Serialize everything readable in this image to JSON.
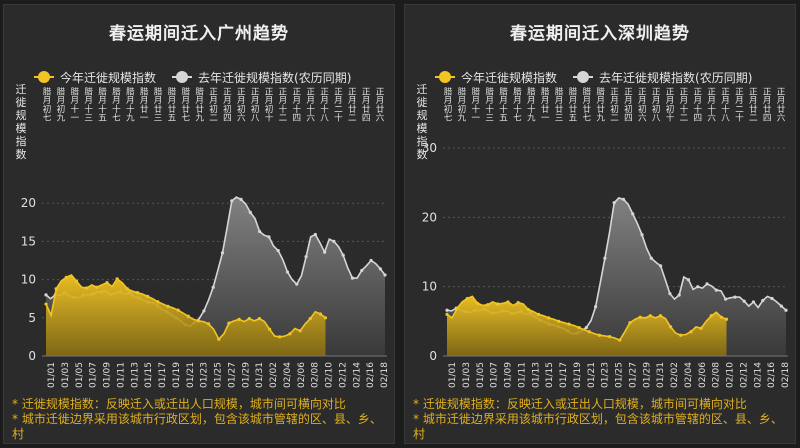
{
  "panels": [
    {
      "title": "春运期间迁入广州趋势",
      "legend": [
        "今年迁徙规模指数",
        "去年迁徙规模指数(农历同期)"
      ],
      "ylabel": "迁徙规模指数",
      "notes": [
        "* 迁徙规模指数：反映迁入或迁出人口规模，城市间可横向对比",
        "* 城市迁徙边界采用该城市行政区划，包含该城市管辖的区、县、乡、村"
      ]
    },
    {
      "title": "春运期间迁入深圳趋势",
      "legend": [
        "今年迁徙规模指数",
        "去年迁徙规模指数(农历同期)"
      ],
      "ylabel": "迁徙规模指数",
      "notes": [
        "* 迁徙规模指数：反映迁入或迁出人口规模，城市间可横向对比",
        "* 城市迁徙边界采用该城市行政区划，包含该城市管辖的区、县、乡、村"
      ]
    }
  ],
  "colors": {
    "this_year": "#f2c522",
    "last_year": "#d6d6d6",
    "grid": "#555555",
    "axis_text": "#e0e0e0",
    "note_text": "#e0b01e"
  },
  "chart_data": [
    {
      "type": "area",
      "title": "春运期间迁入广州趋势",
      "ylabel": "迁徙规模指数",
      "ylim": [
        0,
        25
      ],
      "yticks": [
        0,
        5,
        10,
        15,
        20
      ],
      "grid": true,
      "legend_position": "top-left",
      "x_tick_labels": [
        "01/01",
        "01/03",
        "01/05",
        "01/07",
        "01/09",
        "01/11",
        "01/13",
        "01/15",
        "01/17",
        "01/19",
        "01/21",
        "01/23",
        "01/25",
        "01/27",
        "01/29",
        "01/31",
        "02/02",
        "02/04",
        "02/06",
        "02/08",
        "02/10",
        "02/12",
        "02/14",
        "02/16",
        "02/18"
      ],
      "top_tick_labels": [
        "腊月初七",
        "腊月初九",
        "腊月十一",
        "腊月十三",
        "腊月十五",
        "腊月十七",
        "腊月十九",
        "腊月廿一",
        "腊月廿三",
        "腊月廿五",
        "腊月廿七",
        "腊月廿九",
        "正月初二",
        "正月初四",
        "正月初六",
        "正月初八",
        "正月初十",
        "正月十二",
        "正月十四",
        "正月十六",
        "正月十八",
        "正月二十",
        "正月廿二",
        "正月廿四",
        "正月廿六"
      ],
      "series": [
        {
          "name": "今年迁徙规模指数",
          "values": [
            6.8,
            5.3,
            8.8,
            9.8,
            10.3,
            10.6,
            9.8,
            9.0,
            8.9,
            9.3,
            9.0,
            9.3,
            9.6,
            9.1,
            10.1,
            9.6,
            8.8,
            8.5,
            8.3,
            8.1,
            7.8,
            7.5,
            7.1,
            6.8,
            6.5,
            6.3,
            6.0,
            5.6,
            5.2,
            4.8,
            4.6,
            4.5,
            4.2,
            3.5,
            2.2,
            2.9,
            4.3,
            4.6,
            4.8,
            4.5,
            4.9,
            4.6,
            4.9,
            4.5,
            3.5,
            2.6,
            2.5,
            2.6,
            2.9,
            3.6,
            3.3,
            4.2,
            4.9,
            5.8,
            5.5,
            5.0
          ]
        },
        {
          "name": "去年迁徙规模指数(农历同期)",
          "values": [
            8.0,
            7.5,
            8.0,
            7.9,
            8.3,
            7.9,
            7.7,
            7.6,
            8.0,
            8.0,
            8.1,
            8.4,
            8.4,
            8.5,
            8.0,
            8.3,
            8.4,
            8.1,
            8.3,
            7.7,
            7.6,
            7.3,
            7.0,
            7.0,
            6.6,
            6.1,
            5.8,
            5.4,
            5.0,
            4.6,
            4.1,
            3.9,
            4.4,
            4.9,
            5.9,
            7.3,
            9.0,
            11.2,
            13.5,
            16.8,
            20.3,
            20.8,
            20.5,
            19.9,
            18.8,
            18.0,
            16.3,
            15.8,
            15.6,
            14.4,
            13.8,
            12.6,
            11.0,
            10.0,
            9.4,
            10.5,
            13.0,
            15.6,
            15.9,
            14.8,
            13.6,
            15.3,
            15.0,
            14.3,
            13.2,
            11.5,
            10.2,
            10.2,
            11.2,
            11.8,
            12.5,
            12.1,
            11.4,
            10.6
          ]
        }
      ]
    },
    {
      "type": "area",
      "title": "春运期间迁入深圳趋势",
      "ylabel": "迁徙规模指数",
      "ylim": [
        0,
        30
      ],
      "yticks": [
        0,
        10,
        20,
        30
      ],
      "grid": true,
      "legend_position": "top-left",
      "x_tick_labels": [
        "01/01",
        "01/03",
        "01/05",
        "01/07",
        "01/09",
        "01/11",
        "01/13",
        "01/15",
        "01/17",
        "01/19",
        "01/21",
        "01/23",
        "01/25",
        "01/27",
        "01/29",
        "01/31",
        "02/02",
        "02/04",
        "02/06",
        "02/08",
        "02/10",
        "02/12",
        "02/14",
        "02/16",
        "02/18"
      ],
      "top_tick_labels": [
        "腊月初七",
        "腊月初九",
        "腊月十一",
        "腊月十三",
        "腊月十五",
        "腊月十七",
        "腊月十九",
        "腊月廿一",
        "腊月廿三",
        "腊月廿五",
        "腊月廿七",
        "腊月廿九",
        "正月初二",
        "正月初四",
        "正月初六",
        "正月初八",
        "正月初十",
        "正月十二",
        "正月十四",
        "正月十六",
        "正月十八",
        "正月二十",
        "正月廿二",
        "正月廿四",
        "正月廿六"
      ],
      "series": [
        {
          "name": "今年迁徙规模指数",
          "values": [
            6.0,
            5.5,
            6.9,
            7.8,
            8.3,
            8.6,
            7.6,
            7.3,
            7.4,
            7.8,
            7.5,
            7.6,
            7.8,
            7.3,
            7.7,
            7.5,
            6.7,
            6.4,
            6.0,
            5.8,
            5.5,
            5.3,
            5.0,
            4.8,
            4.6,
            4.4,
            4.1,
            3.8,
            3.5,
            3.2,
            3.0,
            2.9,
            2.8,
            2.6,
            2.3,
            3.5,
            4.8,
            5.3,
            5.6,
            5.5,
            5.8,
            5.5,
            5.8,
            5.4,
            4.2,
            3.3,
            3.0,
            3.1,
            3.5,
            4.2,
            4.0,
            5.0,
            5.8,
            6.3,
            5.6,
            5.3
          ]
        },
        {
          "name": "去年迁徙规模指数(农历同期)",
          "values": [
            6.6,
            6.5,
            6.9,
            6.6,
            6.4,
            6.3,
            6.6,
            6.5,
            6.8,
            6.4,
            6.2,
            6.3,
            6.5,
            6.5,
            6.1,
            6.3,
            6.4,
            6.0,
            6.2,
            5.6,
            5.2,
            4.9,
            4.6,
            4.5,
            4.2,
            4.0,
            3.6,
            3.2,
            3.3,
            3.6,
            4.1,
            5.1,
            7.1,
            10.5,
            14.1,
            17.8,
            22.1,
            22.8,
            22.6,
            21.9,
            20.5,
            19.1,
            17.5,
            15.5,
            14.1,
            13.5,
            13.0,
            11.0,
            9.0,
            8.2,
            8.8,
            11.4,
            11.0,
            9.6,
            10.0,
            9.8,
            10.4,
            10.1,
            9.5,
            9.4,
            8.2,
            8.4,
            8.5,
            8.5,
            7.9,
            7.2,
            7.8,
            7.0,
            8.0,
            8.6,
            8.3,
            7.8,
            7.2,
            6.6
          ]
        }
      ]
    }
  ]
}
